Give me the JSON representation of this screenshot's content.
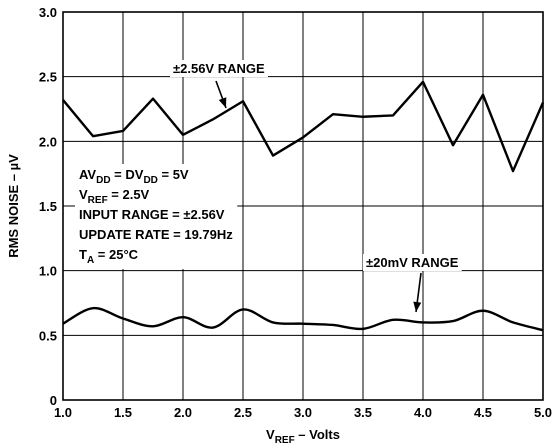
{
  "chart_data": {
    "type": "line",
    "xlabel": {
      "main": "V",
      "sub": "REF",
      "rest": " – Volts"
    },
    "ylabel": "RMS NOISE – µV",
    "xlim": [
      1.0,
      5.0
    ],
    "ylim": [
      0,
      3.0
    ],
    "grid": true,
    "x_ticks": [
      "1.0",
      "1.5",
      "2.0",
      "2.5",
      "3.0",
      "3.5",
      "4.0",
      "4.5",
      "5.0"
    ],
    "y_ticks": [
      "0",
      "0.5",
      "1.0",
      "1.5",
      "2.0",
      "2.5",
      "3.0"
    ],
    "series": [
      {
        "name": "±2.56V RANGE",
        "x": [
          1.0,
          1.25,
          1.5,
          1.75,
          2.0,
          2.25,
          2.5,
          2.75,
          3.0,
          3.25,
          3.5,
          3.75,
          4.0,
          4.25,
          4.5,
          4.75,
          5.0
        ],
        "values": [
          2.32,
          2.04,
          2.08,
          2.33,
          2.05,
          2.17,
          2.31,
          1.89,
          2.03,
          2.21,
          2.19,
          2.2,
          2.46,
          1.97,
          2.36,
          1.77,
          2.3
        ]
      },
      {
        "name": "±20mV RANGE",
        "x": [
          1.0,
          1.25,
          1.5,
          1.75,
          2.0,
          2.25,
          2.5,
          2.75,
          3.0,
          3.25,
          3.5,
          3.75,
          4.0,
          4.25,
          4.5,
          4.75,
          5.0
        ],
        "values": [
          0.59,
          0.71,
          0.63,
          0.57,
          0.64,
          0.56,
          0.7,
          0.6,
          0.59,
          0.58,
          0.55,
          0.62,
          0.6,
          0.61,
          0.69,
          0.6,
          0.54
        ]
      }
    ],
    "annotations": {
      "series1_label": "±2.56V RANGE",
      "series2_label": "±20mV RANGE",
      "conditions": [
        {
          "main": "AV",
          "sub": "DD",
          "rest": " = DV",
          "sub2": "DD",
          "rest2": " = 5V"
        },
        {
          "main": "V",
          "sub": "REF",
          "rest": " = 2.5V"
        },
        {
          "main": "INPUT RANGE = ±2.56V"
        },
        {
          "main": "UPDATE RATE = 19.79Hz"
        },
        {
          "main": "T",
          "sub": "A",
          "rest": " = 25°C"
        }
      ]
    }
  }
}
